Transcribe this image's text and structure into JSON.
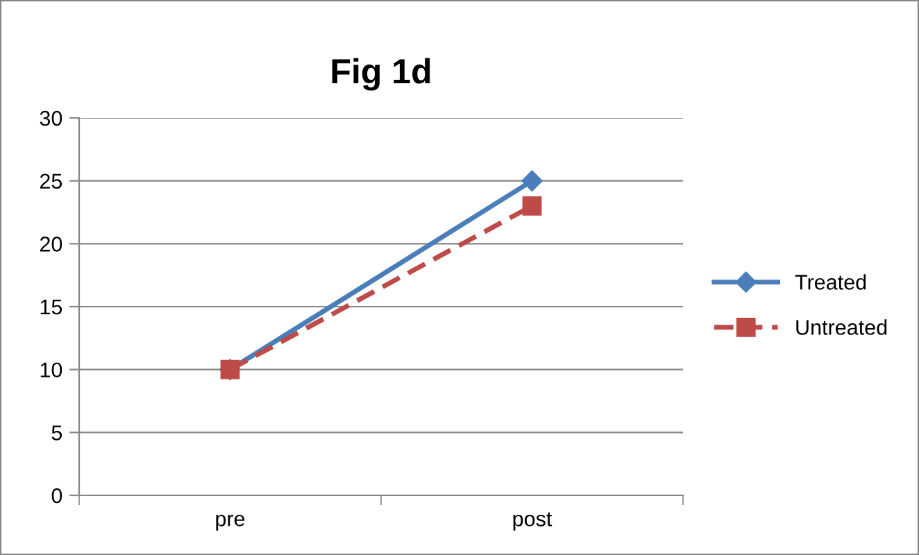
{
  "chart_data": {
    "type": "line",
    "title": "Fig 1d",
    "categories": [
      "pre",
      "post"
    ],
    "series": [
      {
        "name": "Treated",
        "color": "#4a7ebb",
        "values": [
          10,
          25
        ],
        "marker": "diamond",
        "line_style": "solid"
      },
      {
        "name": "Untreated",
        "color": "#be4b48",
        "values": [
          10,
          23
        ],
        "marker": "square",
        "line_style": "dashed"
      }
    ],
    "ylim": [
      0,
      30
    ],
    "yticks": [
      0,
      5,
      10,
      15,
      20,
      25,
      30
    ],
    "grid": "y",
    "legend": "right"
  }
}
